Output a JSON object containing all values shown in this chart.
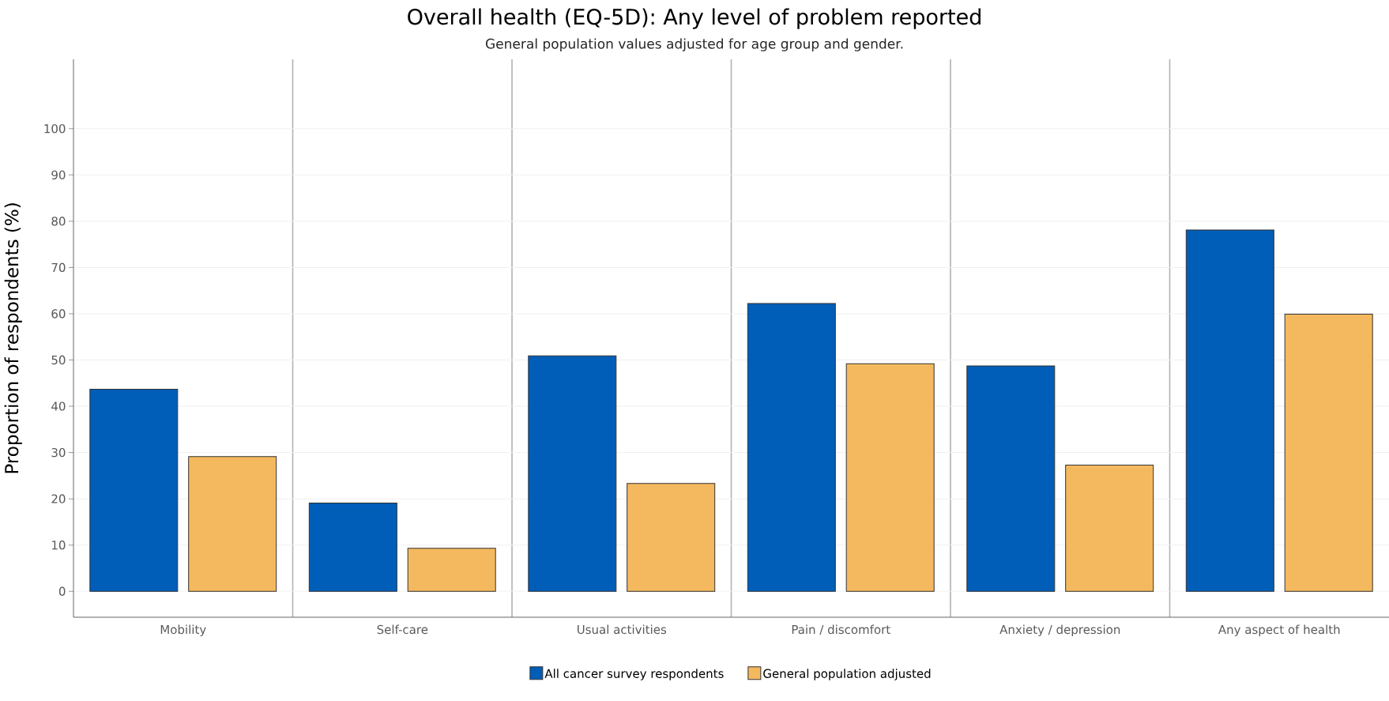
{
  "chart_data": {
    "type": "bar",
    "title": "Overall health (EQ-5D): Any level of problem reported",
    "subtitle": "General population values adjusted for age group and gender.",
    "ylabel": "Proportion of respondents (%)",
    "categories": [
      "Mobility",
      "Self-care",
      "Usual activities",
      "Pain / discomfort",
      "Anxiety / depression",
      "Any aspect of health"
    ],
    "series": [
      {
        "name": "All cancer survey respondents",
        "color": "#005eb8",
        "values": [
          43.7,
          19.1,
          50.9,
          62.2,
          48.7,
          78.1
        ]
      },
      {
        "name": "General population adjusted",
        "color": "#f4b95e",
        "values": [
          29.1,
          9.3,
          23.3,
          49.2,
          27.3,
          59.9
        ]
      }
    ],
    "ylim": [
      -5.6,
      115
    ],
    "yticks": [
      0,
      10,
      20,
      30,
      40,
      50,
      60,
      70,
      80,
      90,
      100
    ],
    "grid": "y",
    "legend": "bottom"
  }
}
